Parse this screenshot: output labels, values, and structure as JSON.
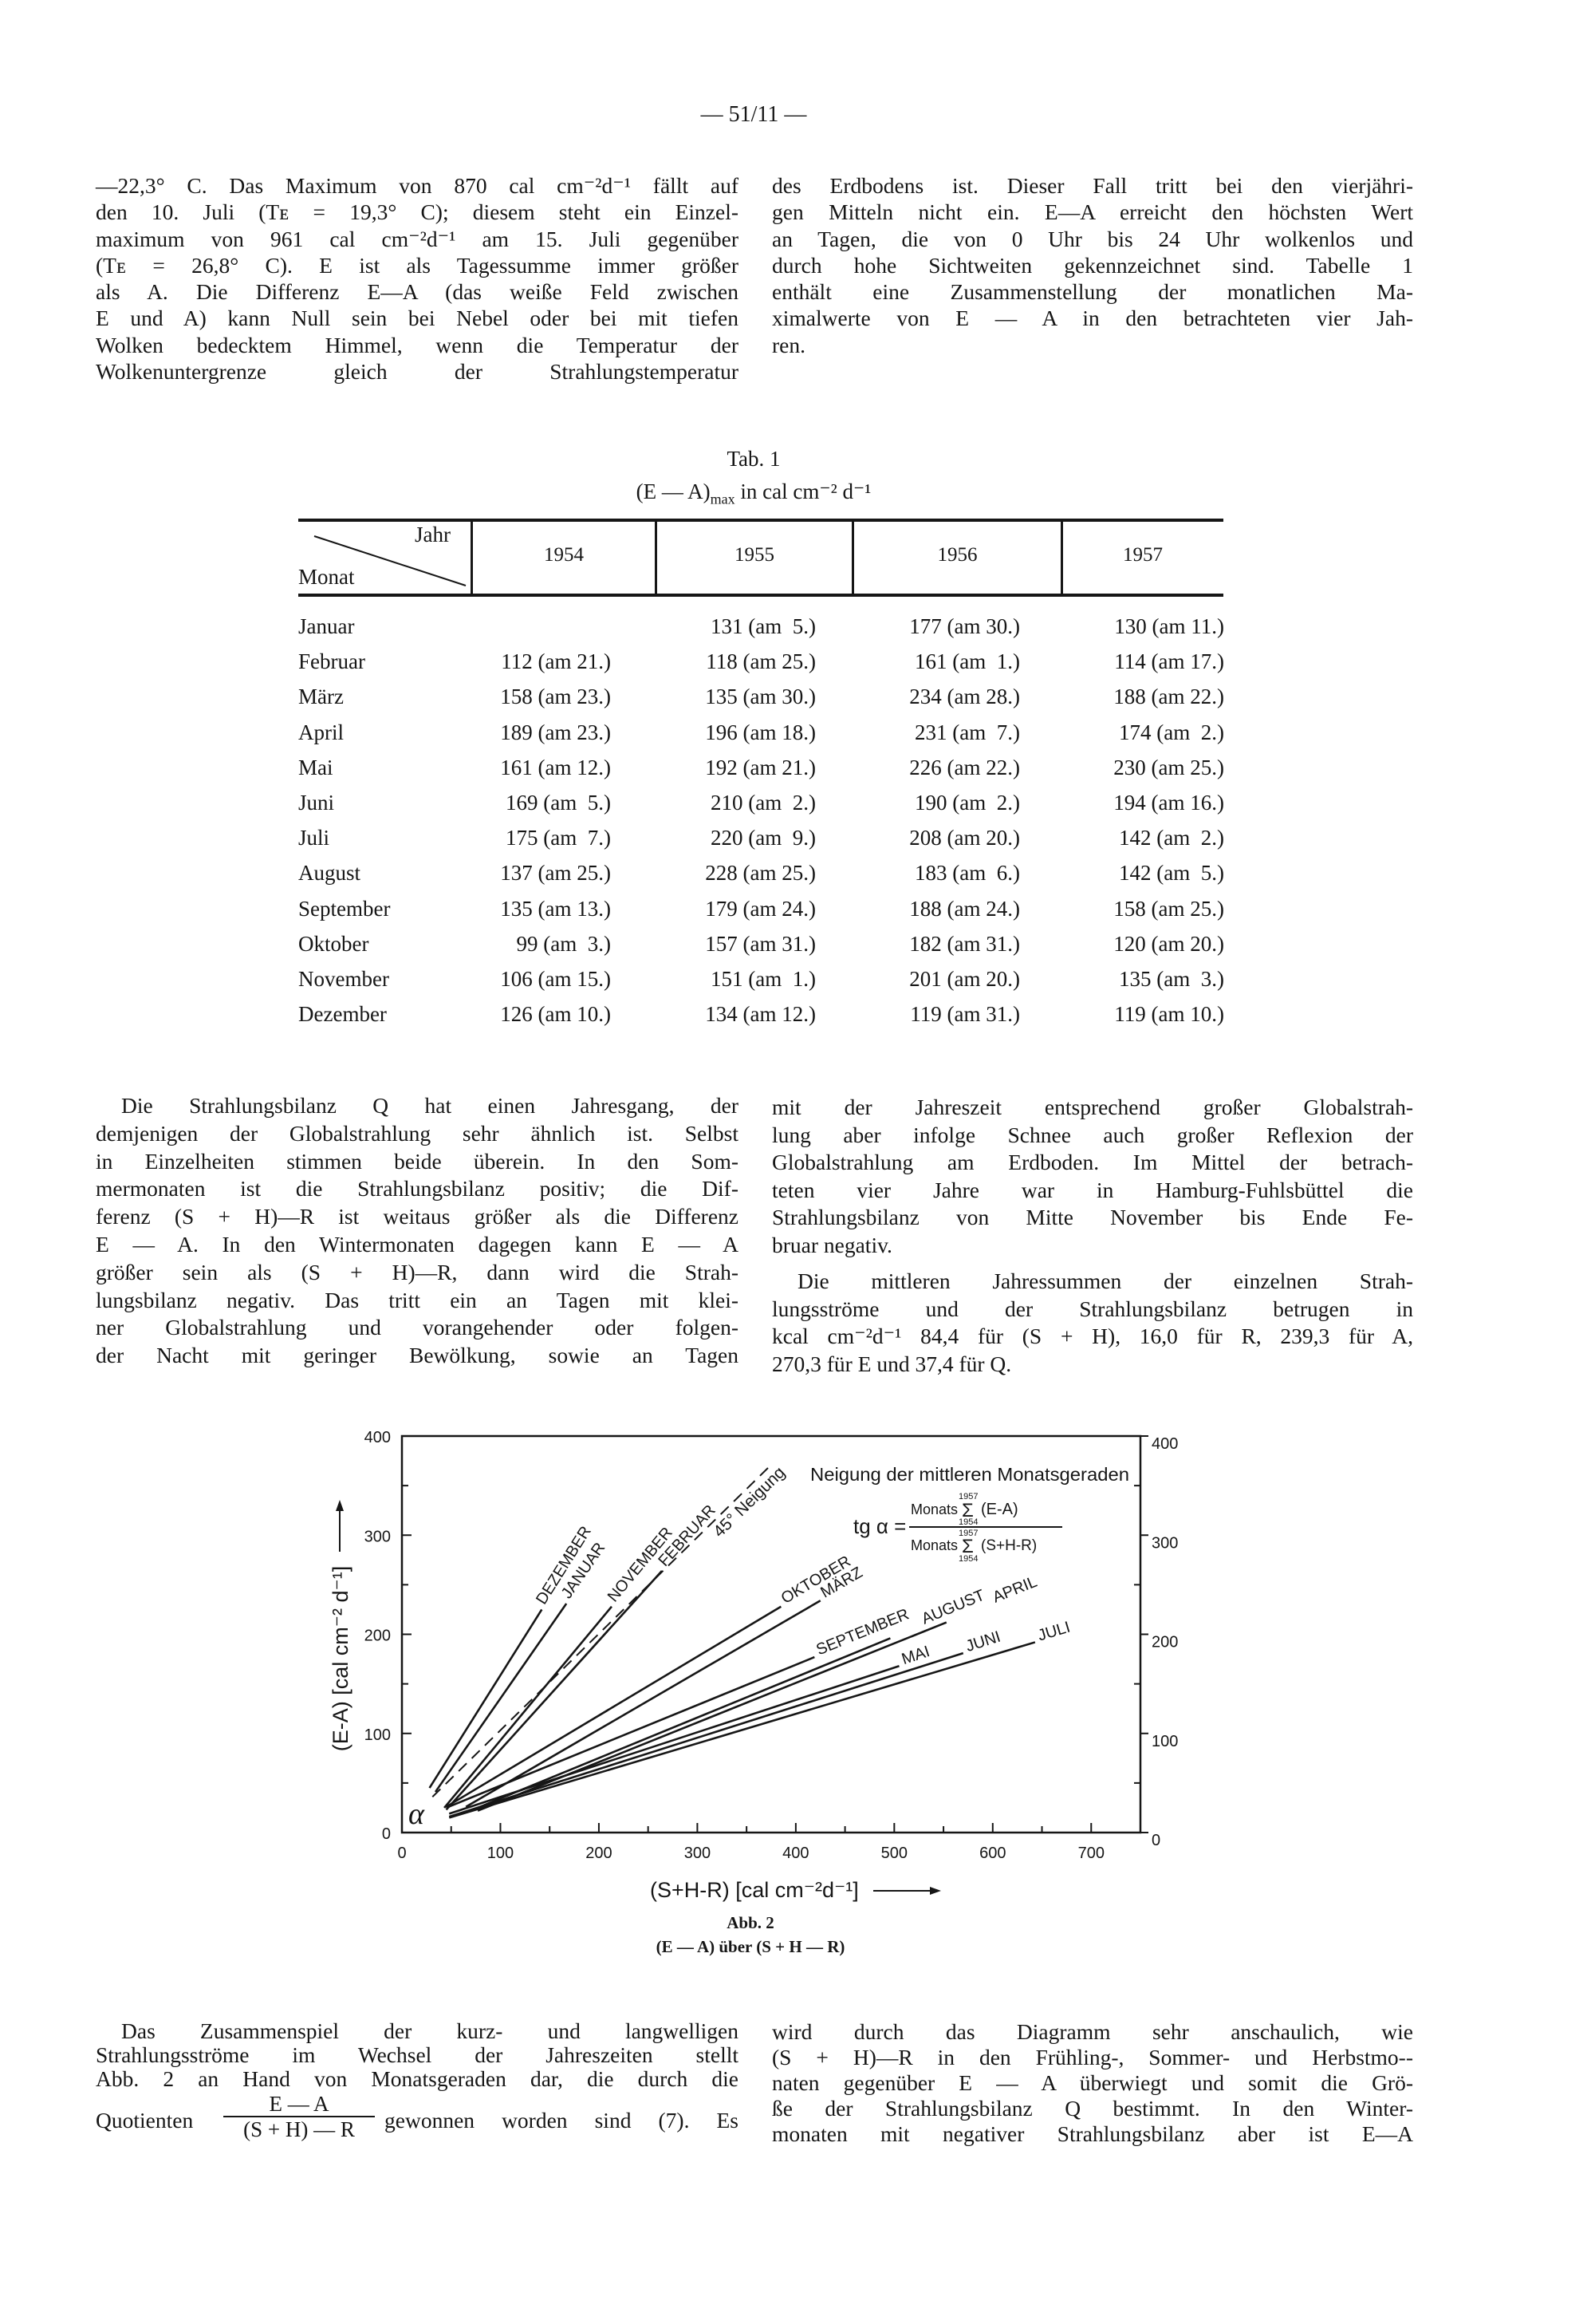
{
  "page_number": "— 51/11 —",
  "top_left_paragraph": [
    "—22,3° C. Das Maximum von 870 cal cm⁻²d⁻¹ fällt auf",
    "den 10. Juli (Tᴇ = 19,3° C); diesem steht ein Einzel-",
    "maximum von 961 cal cm⁻²d⁻¹ am 15. Juli gegenüber",
    "(Tᴇ = 26,8° C). E ist als Tagessumme immer größer",
    "als A. Die Differenz E—A (das weiße Feld zwischen",
    "E und A) kann Null sein bei Nebel oder bei mit tiefen",
    "Wolken bedecktem Himmel, wenn die Temperatur der",
    "Wolkenuntergrenze gleich der Strahlungstemperatur"
  ],
  "top_right_paragraph": [
    "des Erdbodens ist. Dieser Fall tritt bei den vierjähri-",
    "gen Mitteln nicht ein. E—A erreicht den höchsten Wert",
    "an Tagen, die von 0 Uhr bis 24 Uhr wolkenlos und",
    "durch hohe Sichtweiten gekennzeichnet sind. Tabelle 1",
    "enthält eine Zusammenstellung der monatlichen Ma-",
    "ximalwerte von E — A in den betrachteten vier Jah-",
    "ren."
  ],
  "table": {
    "caption": "Tab. 1",
    "subtitle_main": "(E — A)",
    "subtitle_sub": "max",
    "subtitle_rest": " in cal cm⁻² d⁻¹",
    "corner_top": "Jahr",
    "corner_bottom": "Monat",
    "years": [
      "1954",
      "1955",
      "1956",
      "1957"
    ],
    "rows": [
      [
        "Januar",
        "",
        "131 (am  5.)",
        "177 (am 30.)",
        "130 (am 11.)"
      ],
      [
        "Februar",
        "112 (am 21.)",
        "118 (am 25.)",
        "161 (am  1.)",
        "114 (am 17.)"
      ],
      [
        "März",
        "158 (am 23.)",
        "135 (am 30.)",
        "234 (am 28.)",
        "188 (am 22.)"
      ],
      [
        "April",
        "189 (am 23.)",
        "196 (am 18.)",
        "231 (am  7.)",
        "174 (am  2.)"
      ],
      [
        "Mai",
        "161 (am 12.)",
        "192 (am 21.)",
        "226 (am 22.)",
        "230 (am 25.)"
      ],
      [
        "Juni",
        "169 (am  5.)",
        "210 (am  2.)",
        "190 (am  2.)",
        "194 (am 16.)"
      ],
      [
        "Juli",
        "175 (am  7.)",
        "220 (am  9.)",
        "208 (am 20.)",
        "142 (am  2.)"
      ],
      [
        "August",
        "137 (am 25.)",
        "228 (am 25.)",
        "183 (am  6.)",
        "142 (am  5.)"
      ],
      [
        "September",
        "135 (am 13.)",
        "179 (am 24.)",
        "188 (am 24.)",
        "158 (am 25.)"
      ],
      [
        "Oktober",
        "99 (am  3.)",
        "157 (am 31.)",
        "182 (am 31.)",
        "120 (am 20.)"
      ],
      [
        "November",
        "106 (am 15.)",
        "151 (am  1.)",
        "201 (am 20.)",
        "135 (am  3.)"
      ],
      [
        "Dezember",
        "126 (am 10.)",
        "134 (am 12.)",
        "119 (am 31.)",
        "119 (am 10.)"
      ]
    ]
  },
  "middle_left_paragraph": [
    "Die Strahlungsbilanz Q hat einen Jahresgang, der",
    "demjenigen der Globalstrahlung sehr ähnlich ist. Selbst",
    "in Einzelheiten stimmen beide überein. In den Som-",
    "mermonaten ist die Strahlungsbilanz positiv; die Dif-",
    "ferenz (S + H)—R ist weitaus größer als die Differenz",
    "E — A. In den Wintermonaten dagegen kann E — A",
    "größer sein als (S + H)—R, dann wird die Strah-",
    "lungsbilanz negativ. Das tritt ein an Tagen mit klei-",
    "ner Globalstrahlung und vorangehender oder folgen-",
    "der Nacht mit geringer Bewölkung, sowie an Tagen"
  ],
  "middle_right_paragraph_1": [
    "mit der Jahreszeit entsprechend großer Globalstrah-",
    "lung aber infolge Schnee auch großer Reflexion der",
    "Globalstrahlung am Erdboden. Im Mittel der betrach-",
    "teten vier Jahre war in Hamburg-Fuhlsbüttel die",
    "Strahlungsbilanz von Mitte November bis Ende Fe-",
    "bruar negativ."
  ],
  "middle_right_paragraph_2": [
    "Die mittleren Jahressummen der einzelnen Strah-",
    "lungsströme und der Strahlungsbilanz betrugen in",
    "kcal cm⁻²d⁻¹ 84,4 für (S + H), 16,0 für R, 239,3 für A,",
    "270,3 für E und 37,4 für Q."
  ],
  "chart_data": {
    "type": "line",
    "x_range": [
      0,
      750
    ],
    "y_range": [
      0,
      400
    ],
    "xticks": [
      0,
      100,
      200,
      300,
      400,
      500,
      600,
      700
    ],
    "yticks_left": [
      0,
      100,
      200,
      300,
      400
    ],
    "yticks_right": [
      0,
      100,
      200,
      300,
      400
    ],
    "xlabel": "(S+H-R) [cal cm⁻²d⁻¹]",
    "ylabel": "(E-A) [cal cm⁻² d⁻¹]",
    "grid": false,
    "series": [
      {
        "name": "DEZEMBER",
        "points": [
          [
            28,
            45
          ],
          [
            142,
            225
          ]
        ]
      },
      {
        "name": "JANUAR",
        "points": [
          [
            34,
            41
          ],
          [
            167,
            231
          ]
        ]
      },
      {
        "name": "NOVEMBER",
        "points": [
          [
            43,
            25
          ],
          [
            213,
            228
          ]
        ]
      },
      {
        "name": "FEBRUAR",
        "points": [
          [
            45,
            23
          ],
          [
            264,
            264
          ]
        ]
      },
      {
        "name": "OKTOBER",
        "points": [
          [
            45,
            26
          ],
          [
            385,
            228
          ]
        ]
      },
      {
        "name": "MÄRZ",
        "points": [
          [
            65,
            26
          ],
          [
            425,
            234
          ]
        ]
      },
      {
        "name": "SEPTEMBER",
        "points": [
          [
            45,
            25
          ],
          [
            419,
            177
          ]
        ]
      },
      {
        "name": "AUGUST",
        "points": [
          [
            77,
            25
          ],
          [
            496,
            196
          ]
        ]
      },
      {
        "name": "APRIL",
        "points": [
          [
            77,
            22
          ],
          [
            553,
            212
          ]
        ]
      },
      {
        "name": "MAI",
        "points": [
          [
            48,
            19
          ],
          [
            505,
            168
          ]
        ]
      },
      {
        "name": "JUNI",
        "points": [
          [
            48,
            16
          ],
          [
            570,
            181
          ]
        ]
      },
      {
        "name": "JULI",
        "points": [
          [
            48,
            15
          ],
          [
            643,
            192
          ]
        ]
      }
    ],
    "reference_line": {
      "name": "45° Neigung",
      "points": [
        [
          31,
          36
        ],
        [
          374,
          370
        ]
      ],
      "style": "dashed"
    },
    "angle_symbol": "α",
    "annotation_title": "Neigung der mittleren Monatsgeraden",
    "formula": {
      "lhs": "tg α =",
      "numerator_prefix": "Monats",
      "numerator_sum": "Σ",
      "numerator_term": "(E-A)",
      "denominator_prefix": "Monats",
      "denominator_sum": "Σ",
      "denominator_term": "(S+H-R)",
      "upper_limit": "1957",
      "lower_limit": "1954"
    }
  },
  "figure": {
    "caption": "Abb. 2",
    "subcaption": "(E — A) über (S + H — R)"
  },
  "bottom_left_paragraph": [
    "Das Zusammenspiel der kurz- und langwelligen",
    "Strahlungsströme im Wechsel der Jahreszeiten stellt",
    "Abb. 2 an Hand von Monatsgeraden dar, die durch die"
  ],
  "bottom_left_quotient": {
    "before": "Quotienten",
    "numerator": "E — A",
    "denominator": "(S + H) — R",
    "after": "gewonnen worden sind (7). Es"
  },
  "bottom_right_paragraph": [
    "wird durch das Diagramm sehr anschaulich, wie",
    "(S + H)—R in den Frühling-, Sommer- und Herbstmo--",
    "naten gegenüber E — A überwiegt und somit die Grö-",
    "ße der Strahlungsbilanz Q bestimmt. In den Winter-",
    "monaten mit negativer Strahlungsbilanz aber ist E—A"
  ]
}
